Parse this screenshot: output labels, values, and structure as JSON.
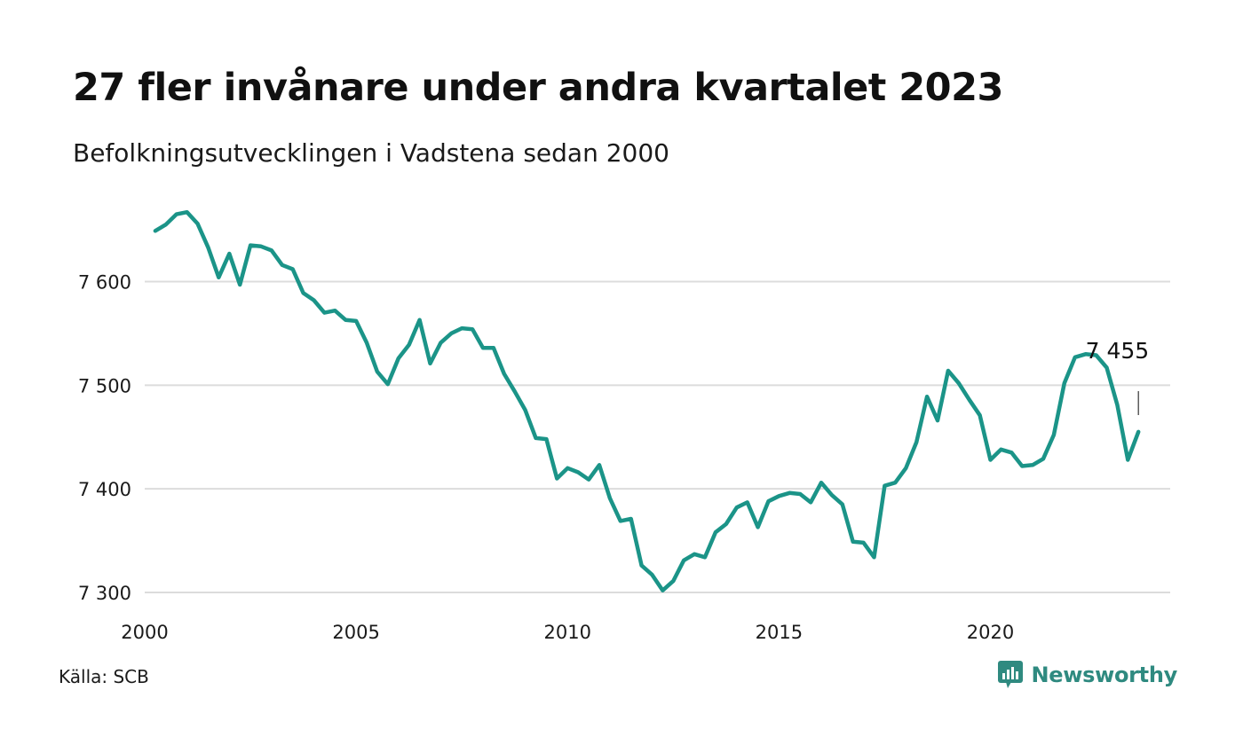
{
  "title": "27 fler invånare under andra kvartalet 2023",
  "subtitle": "Befolkningsutvecklingen i Vadstena sedan 2000",
  "source": "Källa: SCB",
  "brand": {
    "name": "Newsworthy",
    "icon": "newsworthy-logo-icon"
  },
  "colors": {
    "line": "#1b9488",
    "grid": "#dcdcdc",
    "text": "#1a1a1a",
    "brand": "#2f8a80"
  },
  "chart_data": {
    "type": "line",
    "title": "27 fler invånare under andra kvartalet 2023",
    "subtitle": "Befolkningsutvecklingen i Vadstena sedan 2000",
    "xlabel": "",
    "ylabel": "",
    "x_ticks": [
      "2000",
      "2005",
      "2010",
      "2015",
      "2020"
    ],
    "y_ticks": [
      "7 300",
      "7 400",
      "7 500",
      "7 600"
    ],
    "ylim": [
      7298,
      7672
    ],
    "xlim": [
      2000,
      2024.2
    ],
    "grid": "horizontal",
    "last_label": "7 455",
    "series": [
      {
        "x": [
          2000.25,
          2000.5,
          2000.75,
          2001.0,
          2001.25,
          2001.5,
          2001.75,
          2002.0,
          2002.25,
          2002.5,
          2002.75,
          2003.0,
          2003.25,
          2003.5,
          2003.75,
          2004.0,
          2004.25,
          2004.5,
          2004.75,
          2005.0,
          2005.25,
          2005.5,
          2005.75,
          2006.0,
          2006.25,
          2006.5,
          2006.75,
          2007.0,
          2007.25,
          2007.5,
          2007.75,
          2008.0,
          2008.25,
          2008.5,
          2008.75,
          2009.0,
          2009.25,
          2009.5,
          2009.75,
          2010.0,
          2010.25,
          2010.5,
          2010.75,
          2011.0,
          2011.25,
          2011.5,
          2011.75,
          2012.0,
          2012.25,
          2012.5,
          2012.75,
          2013.0,
          2013.25,
          2013.5,
          2013.75,
          2014.0,
          2014.25,
          2014.5,
          2014.75,
          2015.0,
          2015.25,
          2015.5,
          2015.75,
          2016.0,
          2016.25,
          2016.5,
          2016.75,
          2017.0,
          2017.25,
          2017.5,
          2017.75,
          2018.0,
          2018.25,
          2018.5,
          2018.75,
          2019.0,
          2019.25,
          2019.5,
          2019.75,
          2020.0,
          2020.25,
          2020.5,
          2020.75,
          2021.0,
          2021.25,
          2021.5,
          2021.75,
          2022.0,
          2022.25,
          2022.5,
          2022.75,
          2023.0,
          2023.25,
          2023.5
        ],
        "values": [
          7649,
          7655,
          7665,
          7667,
          7656,
          7633,
          7604,
          7627,
          7597,
          7635,
          7634,
          7630,
          7616,
          7612,
          7589,
          7582,
          7570,
          7572,
          7563,
          7562,
          7541,
          7513,
          7501,
          7526,
          7539,
          7563,
          7521,
          7541,
          7550,
          7555,
          7554,
          7536,
          7536,
          7511,
          7494,
          7476,
          7449,
          7448,
          7410,
          7420,
          7416,
          7409,
          7423,
          7391,
          7369,
          7371,
          7326,
          7317,
          7302,
          7311,
          7331,
          7337,
          7334,
          7358,
          7366,
          7382,
          7387,
          7363,
          7388,
          7393,
          7396,
          7395,
          7387,
          7406,
          7394,
          7385,
          7349,
          7348,
          7334,
          7403,
          7406,
          7420,
          7445,
          7489,
          7466,
          7514,
          7502,
          7486,
          7471,
          7428,
          7438,
          7435,
          7422,
          7423,
          7429,
          7452,
          7502,
          7527,
          7530,
          7529,
          7517,
          7481,
          7428,
          7455
        ]
      }
    ]
  }
}
